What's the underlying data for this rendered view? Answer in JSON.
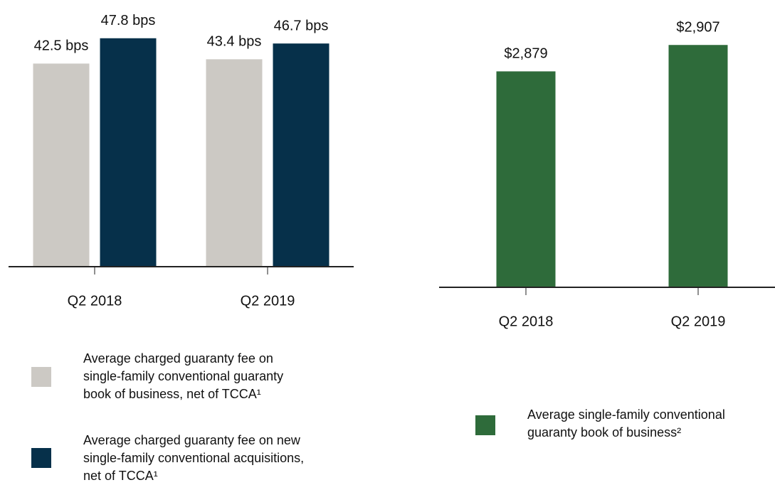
{
  "chart_data": [
    {
      "type": "bar",
      "categories": [
        "Q2 2018",
        "Q2 2019"
      ],
      "series": [
        {
          "name": "Average charged guaranty fee on\nsingle-family conventional guaranty\nbook of business, net of TCCA¹",
          "color": "#ccc9c4",
          "values": [
            42.5,
            43.4
          ],
          "value_labels": [
            "42.5 bps",
            "43.4 bps"
          ]
        },
        {
          "name": "Average charged guaranty fee on new\nsingle-family conventional acquisitions,\nnet of TCCA¹",
          "color": "#06304a",
          "values": [
            47.8,
            46.7
          ],
          "value_labels": [
            "47.8 bps",
            "46.7 bps"
          ]
        }
      ],
      "ylim": [
        0,
        50
      ]
    },
    {
      "type": "bar",
      "categories": [
        "Q2 2018",
        "Q2 2019"
      ],
      "series": [
        {
          "name": "Average single-family conventional\nguaranty book of business²",
          "color": "#2e6b3a",
          "values": [
            2879,
            2907
          ],
          "value_labels": [
            "$2,879",
            "$2,907"
          ]
        }
      ],
      "ylim": [
        2650,
        2920
      ]
    }
  ]
}
